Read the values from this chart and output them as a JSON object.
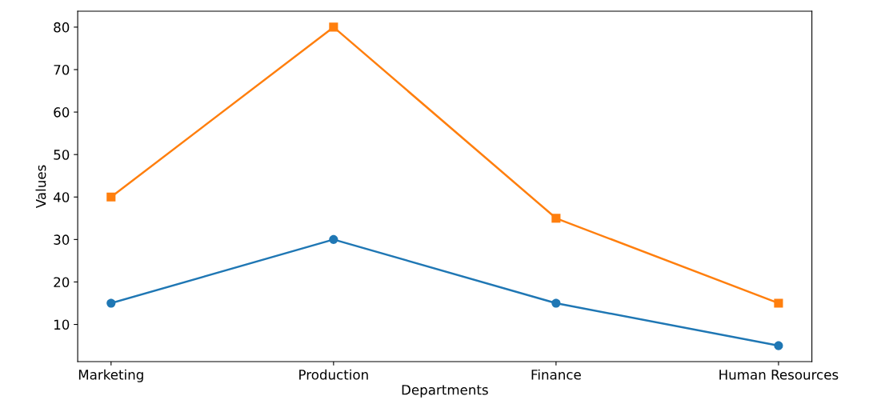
{
  "chart_data": {
    "type": "line",
    "xlabel": "Departments",
    "ylabel": "Values",
    "categories": [
      "Marketing",
      "Production",
      "Finance",
      "Human Resources"
    ],
    "series": [
      {
        "color": "#1f77b4",
        "marker": "circle",
        "values": [
          15,
          30,
          15,
          5
        ]
      },
      {
        "color": "#ff7f0e",
        "marker": "square",
        "values": [
          40,
          80,
          35,
          15
        ]
      }
    ],
    "ylim": [
      1.25,
      83.75
    ],
    "yticks": [
      10,
      20,
      30,
      40,
      50,
      60,
      70,
      80
    ],
    "grid": false,
    "legend": false
  }
}
